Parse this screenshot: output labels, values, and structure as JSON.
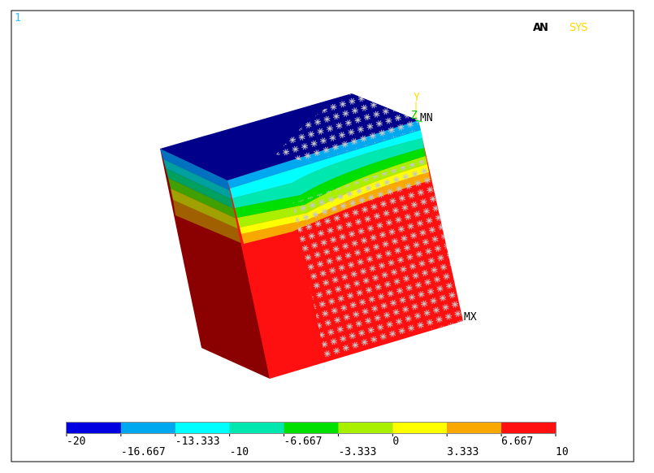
{
  "window_number": "1",
  "logo": [
    "AN",
    "SYS"
  ],
  "triad": {
    "y_label": "Y",
    "z_label": "Z"
  },
  "annotations": {
    "min": "MN",
    "max": "MX"
  },
  "legend": {
    "colors": [
      "#0000e0",
      "#00a8f0",
      "#00ffff",
      "#00e8b0",
      "#00e000",
      "#a8f000",
      "#ffff00",
      "#f8a800",
      "#ff1010"
    ],
    "labels": [
      "-20",
      "-16.667",
      "-13.333",
      "-10",
      "-6.667",
      "-3.333",
      "0",
      "3.333",
      "6.667",
      "10"
    ]
  }
}
